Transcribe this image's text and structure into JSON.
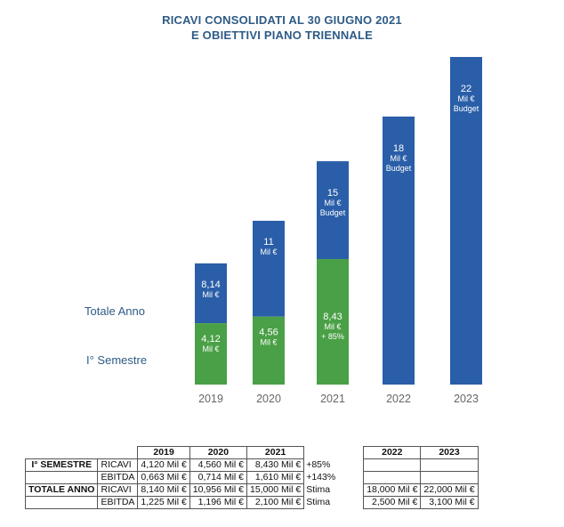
{
  "chart_data": {
    "type": "bar",
    "title_lines": [
      "RICAVI CONSOLIDATI AL 30 GIUGNO 2021",
      "E OBIETTIVI PIANO TRIENNALE"
    ],
    "categories": [
      "2019",
      "2020",
      "2021",
      "2022",
      "2023"
    ],
    "row_labels": {
      "total": "Totale Anno",
      "half": "I° Semestre"
    },
    "series": [
      {
        "name": "I° Semestre",
        "color": "#4aa046",
        "values": [
          4.12,
          4.56,
          8.43,
          null,
          null
        ],
        "labels": [
          [
            "4,12",
            "Mil €"
          ],
          [
            "4,56",
            "Mil €"
          ],
          [
            "8,43",
            "Mil €",
            "+ 85%"
          ],
          null,
          null
        ]
      },
      {
        "name": "Totale Anno",
        "color": "#2a5ea8",
        "values": [
          8.14,
          11,
          15,
          18,
          22
        ],
        "labels": [
          [
            "8,14",
            "Mil €"
          ],
          [
            "11",
            "Mil €"
          ],
          [
            "15",
            "Mil €",
            "Budget"
          ],
          [
            "18",
            "Mil €",
            "Budget"
          ],
          [
            "22",
            "Mil €",
            "Budget"
          ]
        ]
      }
    ],
    "ylim": [
      0,
      22
    ],
    "grid": false,
    "legend": "left"
  },
  "table": {
    "headers_left": [
      "2019",
      "2020",
      "2021"
    ],
    "headers_right": [
      "2022",
      "2023"
    ],
    "rows": [
      {
        "group": "I° SEMESTRE",
        "metric": "RICAVI",
        "left": [
          "4,120 Mil €",
          "4,560 Mil €",
          "8,430 Mil €"
        ],
        "note": "+85%",
        "right": [
          "",
          ""
        ]
      },
      {
        "group": "",
        "metric": "EBITDA",
        "left": [
          "0,663 Mil €",
          "0,714 Mil €",
          "1,610 Mil €"
        ],
        "note": "+143%",
        "right": [
          "",
          ""
        ]
      },
      {
        "group": "TOTALE ANNO",
        "metric": "RICAVI",
        "left": [
          "8,140 Mil €",
          "10,956 Mil €",
          "15,000 Mil €"
        ],
        "note": "Stima",
        "right": [
          "18,000 Mil €",
          "22,000 Mil €"
        ]
      },
      {
        "group": "",
        "metric": "EBITDA",
        "left": [
          "1,225 Mil €",
          "1,196 Mil €",
          "2,100 Mil €"
        ],
        "note": "Stima",
        "right": [
          "2,500 Mil €",
          "3,100 Mil €"
        ]
      }
    ]
  }
}
